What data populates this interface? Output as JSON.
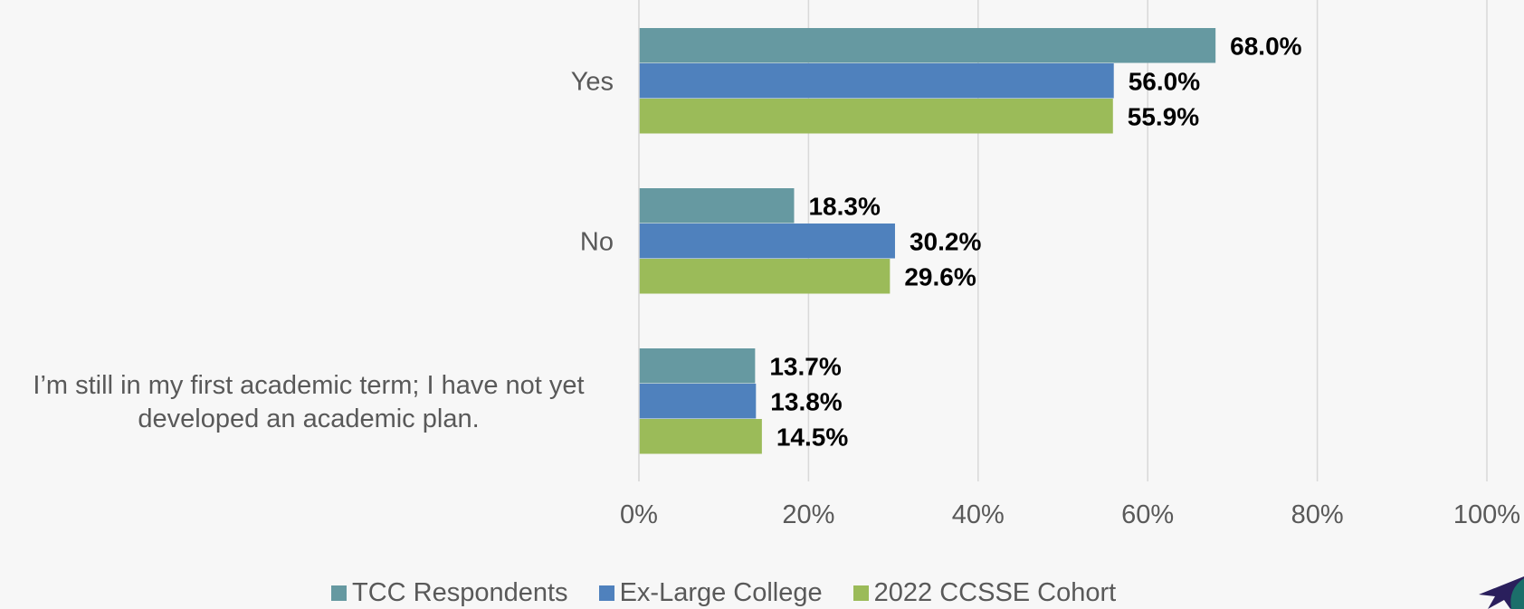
{
  "chart_data": {
    "type": "bar",
    "orientation": "horizontal",
    "categories": [
      "Yes",
      "No",
      "I’m still in my first academic term; I have not yet developed an academic plan."
    ],
    "category_lines": [
      [
        "Yes"
      ],
      [
        "No"
      ],
      [
        "I’m still in my first academic term; I have not yet",
        "developed an academic plan."
      ]
    ],
    "series": [
      {
        "name": "TCC Respondents",
        "color": "#6699a1",
        "values": [
          68.0,
          18.3,
          13.7
        ],
        "labels": [
          "68.0%",
          "18.3%",
          "13.7%"
        ]
      },
      {
        "name": "Ex-Large College",
        "color": "#4f81bd",
        "values": [
          56.0,
          30.2,
          13.8
        ],
        "labels": [
          "56.0%",
          "30.2%",
          "13.8%"
        ]
      },
      {
        "name": "2022 CCSSE Cohort",
        "color": "#9bbb59",
        "values": [
          55.9,
          29.6,
          14.5
        ],
        "labels": [
          "55.9%",
          "29.6%",
          "14.5%"
        ]
      }
    ],
    "xlim": [
      0,
      100
    ],
    "x_ticks": [
      "0%",
      "20%",
      "40%",
      "60%",
      "80%",
      "100%"
    ],
    "grid": true,
    "legend_position": "bottom"
  },
  "logo": {
    "name": "star-logo-icon",
    "colors": [
      "#2a1f5c",
      "#1b6f6a"
    ]
  }
}
